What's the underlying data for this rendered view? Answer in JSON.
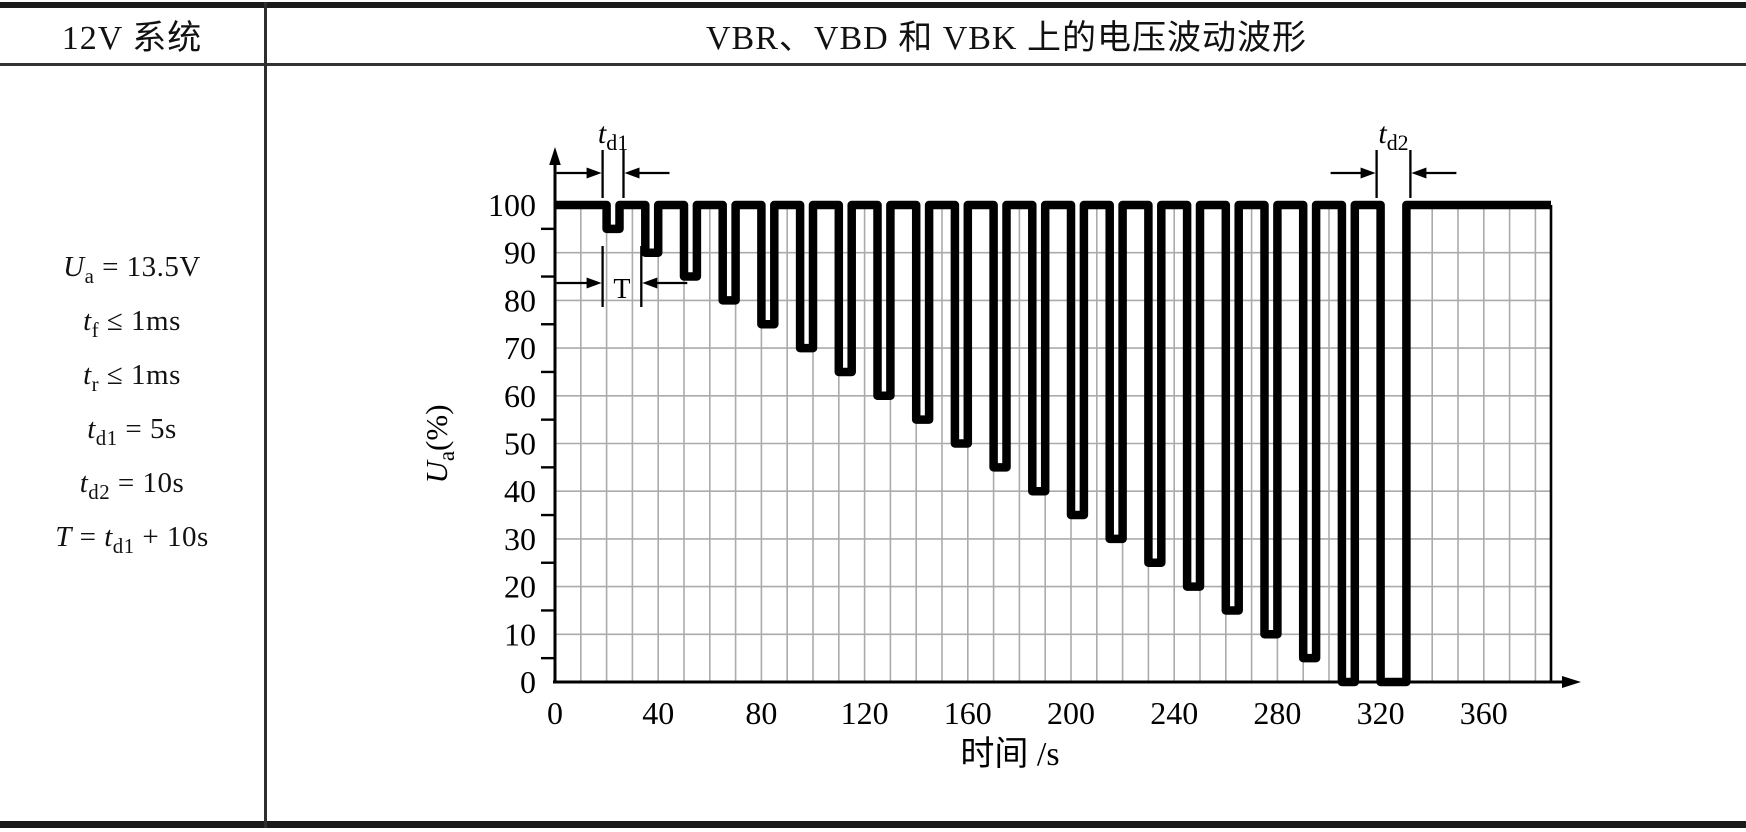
{
  "table": {
    "header_left": "12V 系统",
    "header_right": "VBR、VBD 和 VBK 上的电压波动波形"
  },
  "parameters": [
    {
      "id": "Ua",
      "tokens": [
        {
          "t": "U",
          "i": true
        },
        {
          "t": "a",
          "sub": true
        },
        {
          "t": " = 13.5V"
        }
      ]
    },
    {
      "id": "tf",
      "tokens": [
        {
          "t": "t",
          "i": true
        },
        {
          "t": "f",
          "sub": true
        },
        {
          "t": " ≤ 1ms"
        }
      ]
    },
    {
      "id": "tr",
      "tokens": [
        {
          "t": "t",
          "i": true
        },
        {
          "t": "r",
          "sub": true
        },
        {
          "t": " ≤ 1ms"
        }
      ]
    },
    {
      "id": "td1",
      "tokens": [
        {
          "t": "t",
          "i": true
        },
        {
          "t": "d1",
          "sub": true
        },
        {
          "t": " = 5s"
        }
      ]
    },
    {
      "id": "td2",
      "tokens": [
        {
          "t": "t",
          "i": true
        },
        {
          "t": "d2",
          "sub": true
        },
        {
          "t": " = 10s"
        }
      ]
    },
    {
      "id": "T",
      "tokens": [
        {
          "t": "T",
          "i": true
        },
        {
          "t": " = "
        },
        {
          "t": "t",
          "i": true
        },
        {
          "t": "d1",
          "sub": true
        },
        {
          "t": " + 10s"
        }
      ]
    }
  ],
  "chart_data": {
    "type": "line",
    "title": "VBR、VBD 和 VBK 上的电压波动波形",
    "xlabel": "时间 /s",
    "ylabel": "Ua(%)",
    "ylabel_parts": {
      "var": "U",
      "sub": "a",
      "unit": "(%)"
    },
    "xlim": [
      0,
      386
    ],
    "ylim": [
      0,
      100
    ],
    "x_ticks": [
      0,
      40,
      80,
      120,
      160,
      200,
      240,
      280,
      320,
      360
    ],
    "y_ticks": [
      0,
      10,
      20,
      30,
      40,
      50,
      60,
      70,
      80,
      90,
      100
    ],
    "y_minor_tick_step": 5,
    "grid": true,
    "grid_spacing": {
      "x_s": 10,
      "y_pct": 10
    },
    "baseline_pct": 100,
    "pulse_period_s": 15,
    "pulses": [
      {
        "start_s": 20,
        "end_s": 25,
        "dip_pct": 95
      },
      {
        "start_s": 35,
        "end_s": 40,
        "dip_pct": 90
      },
      {
        "start_s": 50,
        "end_s": 55,
        "dip_pct": 85
      },
      {
        "start_s": 65,
        "end_s": 70,
        "dip_pct": 80
      },
      {
        "start_s": 80,
        "end_s": 85,
        "dip_pct": 75
      },
      {
        "start_s": 95,
        "end_s": 100,
        "dip_pct": 70
      },
      {
        "start_s": 110,
        "end_s": 115,
        "dip_pct": 65
      },
      {
        "start_s": 125,
        "end_s": 130,
        "dip_pct": 60
      },
      {
        "start_s": 140,
        "end_s": 145,
        "dip_pct": 55
      },
      {
        "start_s": 155,
        "end_s": 160,
        "dip_pct": 50
      },
      {
        "start_s": 170,
        "end_s": 175,
        "dip_pct": 45
      },
      {
        "start_s": 185,
        "end_s": 190,
        "dip_pct": 40
      },
      {
        "start_s": 200,
        "end_s": 205,
        "dip_pct": 35
      },
      {
        "start_s": 215,
        "end_s": 220,
        "dip_pct": 30
      },
      {
        "start_s": 230,
        "end_s": 235,
        "dip_pct": 25
      },
      {
        "start_s": 245,
        "end_s": 250,
        "dip_pct": 20
      },
      {
        "start_s": 260,
        "end_s": 265,
        "dip_pct": 15
      },
      {
        "start_s": 275,
        "end_s": 280,
        "dip_pct": 10
      },
      {
        "start_s": 290,
        "end_s": 295,
        "dip_pct": 5
      },
      {
        "start_s": 305,
        "end_s": 310,
        "dip_pct": 0
      },
      {
        "start_s": 320,
        "end_s": 330,
        "dip_pct": 0
      }
    ],
    "annotations": [
      {
        "id": "td1",
        "label_main": "t",
        "label_sub": "d1",
        "marks_s": [
          20,
          25
        ]
      },
      {
        "id": "T",
        "label_main": "T",
        "label_sub": "",
        "marks_s": [
          20,
          35
        ]
      },
      {
        "id": "td2",
        "label_main": "t",
        "label_sub": "d2",
        "marks_s": [
          320,
          330
        ]
      }
    ]
  }
}
